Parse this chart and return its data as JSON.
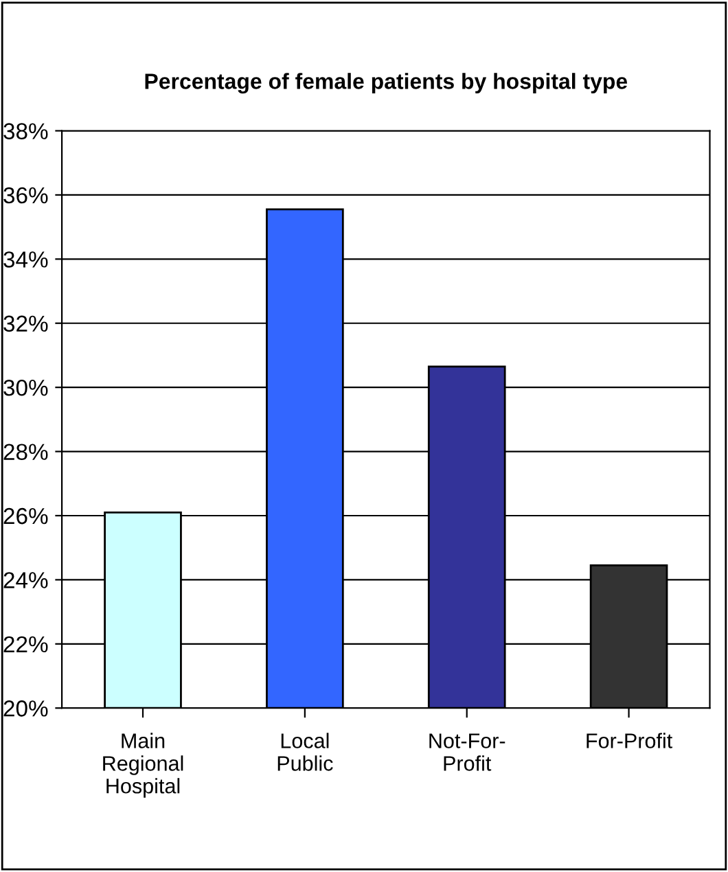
{
  "chart_data": {
    "type": "bar",
    "title": "Percentage of female patients by hospital type",
    "categories": [
      "Main\nRegional\nHospital",
      "Local\nPublic",
      "Not-For-\nProfit",
      "For-Profit"
    ],
    "values": [
      26.1,
      35.55,
      30.65,
      24.45
    ],
    "colors": [
      "#ccffff",
      "#3366ff",
      "#333399",
      "#333333"
    ],
    "ylim": [
      20,
      38
    ],
    "yticks": [
      {
        "value": 20,
        "label": "20%"
      },
      {
        "value": 22,
        "label": "22%"
      },
      {
        "value": 24,
        "label": "24%"
      },
      {
        "value": 26,
        "label": "26%"
      },
      {
        "value": 28,
        "label": "28%"
      },
      {
        "value": 30,
        "label": "30%"
      },
      {
        "value": 32,
        "label": "32%"
      },
      {
        "value": 34,
        "label": "34%"
      },
      {
        "value": 36,
        "label": "36%"
      },
      {
        "value": 38,
        "label": "38%"
      }
    ],
    "grid": "y",
    "legend": false
  }
}
